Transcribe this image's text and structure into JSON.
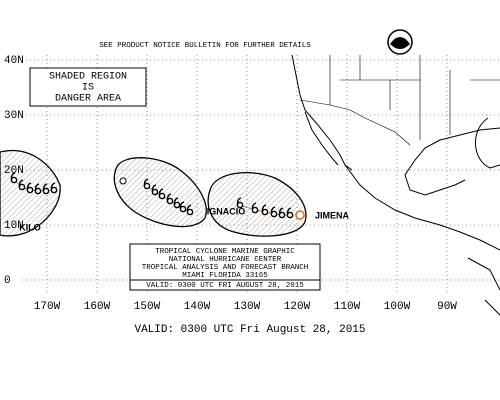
{
  "header": {
    "notice": "SEE PRODUCT NOTICE BULLETIN FOR FURTHER DETAILS"
  },
  "legend": {
    "lines": [
      "SHADED REGION",
      "IS",
      "DANGER AREA"
    ]
  },
  "lat_labels": [
    "40N",
    "30N",
    "20N",
    "10N",
    "0"
  ],
  "lon_labels": [
    "170W",
    "160W",
    "150W",
    "140W",
    "130W",
    "120W",
    "110W",
    "100W",
    "90W"
  ],
  "storms": [
    {
      "name": "KILO"
    },
    {
      "name": "IGNACIO"
    },
    {
      "name": "JIMENA"
    }
  ],
  "info_box": {
    "lines": [
      "TROPICAL CYCLONE MARINE GRAPHIC",
      "NATIONAL HURRICANE CENTER",
      "TROPICAL ANALYSIS AND FORECAST BRANCH",
      "MIAMI FLORIDA  33165",
      "VALID:  0300 UTC FRI AUGUST 28, 2015"
    ]
  },
  "valid": "VALID: 0300 UTC Fri August 28, 2015"
}
